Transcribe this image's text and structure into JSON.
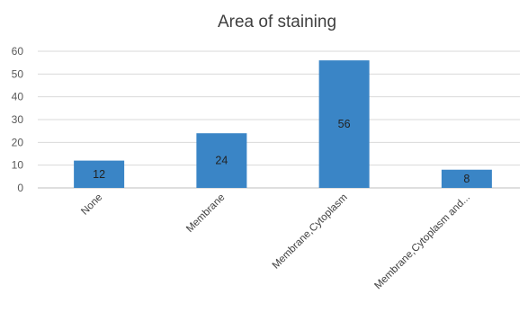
{
  "chart_data": {
    "type": "bar",
    "title": "Area of staining",
    "categories": [
      "None",
      "Membrane",
      "Membrane,Cytoplasm",
      "Membrane,Cytoplasm and..."
    ],
    "values": [
      12,
      24,
      56,
      8
    ],
    "data_labels": [
      "12",
      "24",
      "56",
      "8"
    ],
    "ylim": [
      0,
      60
    ],
    "yticks": [
      0,
      10,
      20,
      30,
      40,
      50,
      60
    ],
    "xlabel": "",
    "ylabel": "",
    "grid": true,
    "legend": "none",
    "bar_color": "#3a85c6"
  }
}
